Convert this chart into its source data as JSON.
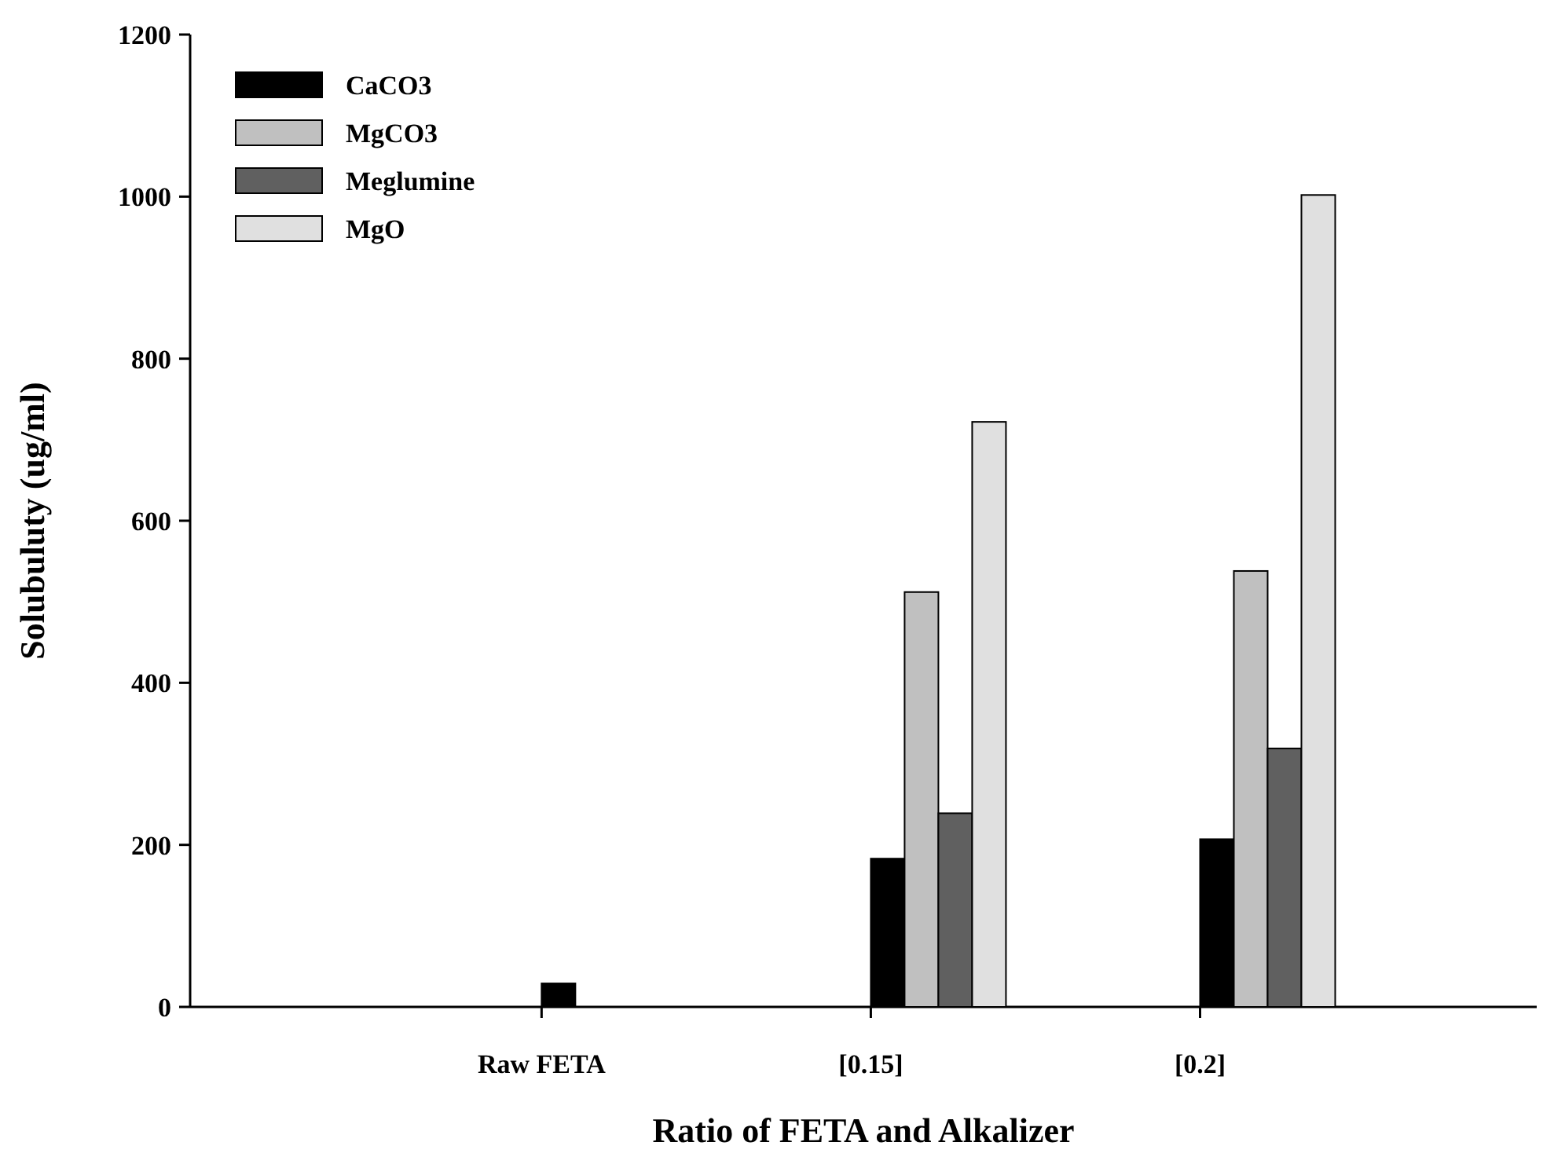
{
  "chart_data": {
    "type": "bar",
    "xlabel": "Ratio of FETA and Alkalizer",
    "ylabel": "Solubuluty (ug/ml)",
    "categories": [
      "Raw FETA",
      "[0.15]",
      "[0.2]"
    ],
    "series": [
      {
        "name": "CaCO3",
        "color": "#000000",
        "values": [
          29,
          183,
          207
        ]
      },
      {
        "name": "MgCO3",
        "color": "#c0c0c0",
        "values": [
          null,
          512,
          538
        ]
      },
      {
        "name": "Meglumine",
        "color": "#606060",
        "values": [
          null,
          239,
          319
        ]
      },
      {
        "name": "MgO",
        "color": "#e0e0e0",
        "values": [
          null,
          722,
          1002
        ]
      }
    ],
    "ylim": [
      0,
      1200
    ],
    "yticks": [
      0,
      200,
      400,
      600,
      800,
      1000,
      1200
    ],
    "legend": "top left"
  }
}
